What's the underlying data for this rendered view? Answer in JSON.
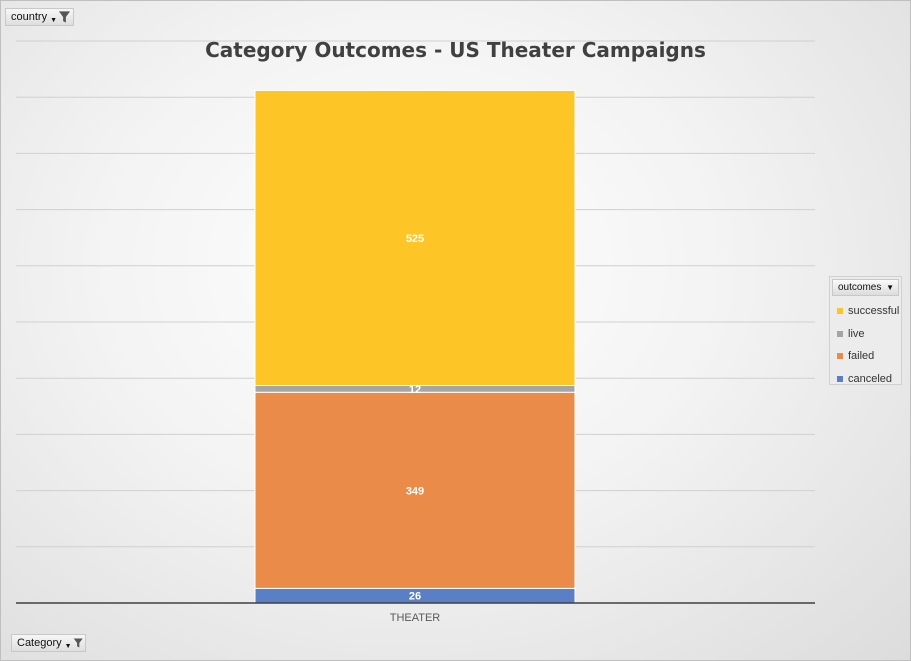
{
  "filters": {
    "country_label": "country",
    "category_label": "Category"
  },
  "legend": {
    "header": "outcomes",
    "items": [
      {
        "label": "successful",
        "color": "#fdc526"
      },
      {
        "label": "live",
        "color": "#a5a5a5"
      },
      {
        "label": "failed",
        "color": "#eb8b4a"
      },
      {
        "label": "canceled",
        "color": "#5b7fc4"
      }
    ]
  },
  "chart_data": {
    "type": "bar",
    "stacked": true,
    "title": "Category Outcomes - US Theater Campaigns",
    "categories": [
      "THEATER"
    ],
    "series": [
      {
        "name": "canceled",
        "values": [
          26
        ],
        "color": "#5b7fc4"
      },
      {
        "name": "failed",
        "values": [
          349
        ],
        "color": "#eb8b4a"
      },
      {
        "name": "live",
        "values": [
          12
        ],
        "color": "#a5a5a5"
      },
      {
        "name": "successful",
        "values": [
          525
        ],
        "color": "#fdc526"
      }
    ],
    "ylim": [
      0,
      1000
    ],
    "grid": true,
    "legend_position": "right"
  }
}
